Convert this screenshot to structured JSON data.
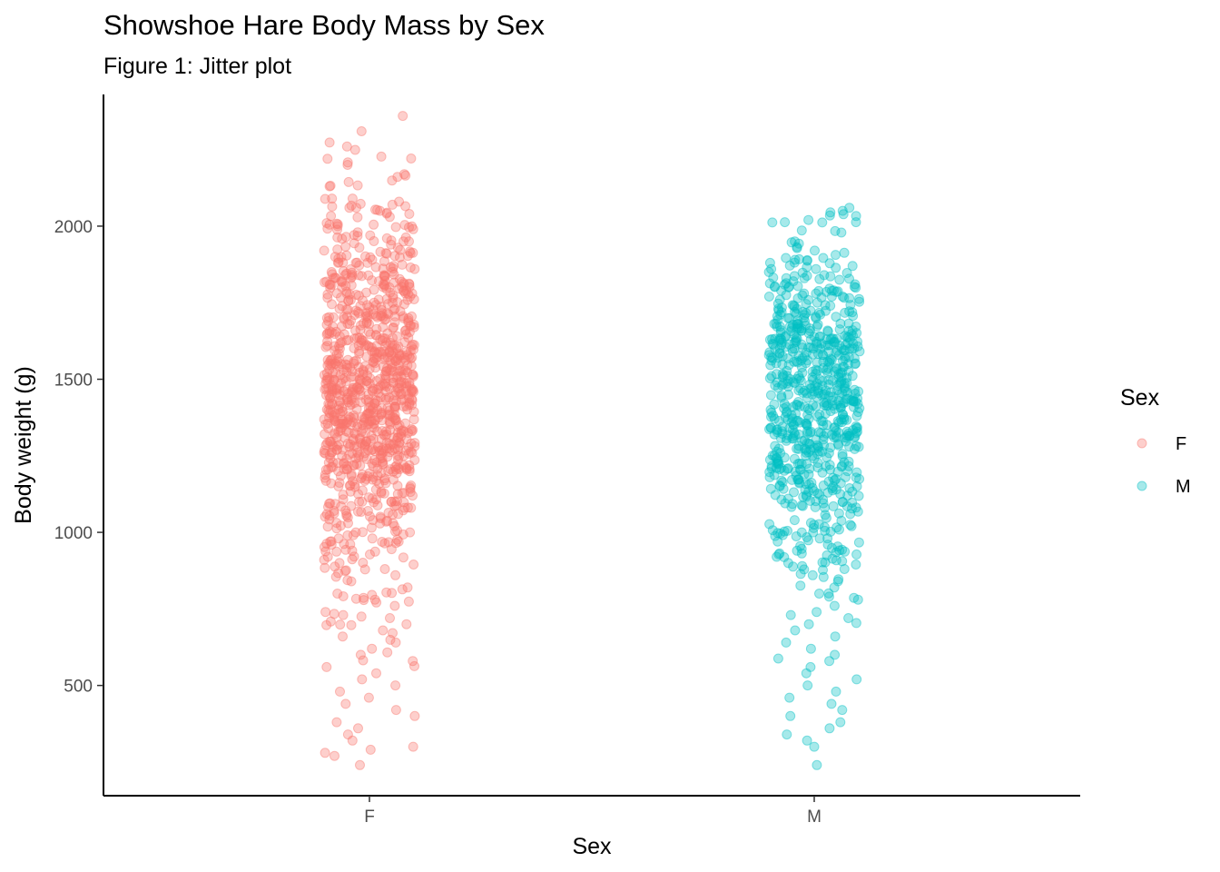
{
  "chart_data": {
    "type": "scatter",
    "subtype": "jitter",
    "title": "Showshoe Hare Body Mass by Sex",
    "subtitle": "Figure 1: Jitter plot",
    "xlabel": "Sex",
    "ylabel": "Body weight (g)",
    "categories": [
      "F",
      "M"
    ],
    "ylim": [
      140,
      2430
    ],
    "yticks": [
      500,
      1000,
      1500,
      2000
    ],
    "grid": false,
    "legend": {
      "title": "Sex",
      "position": "right",
      "entries": [
        "F",
        "M"
      ]
    },
    "point_alpha": 0.35,
    "series": [
      {
        "name": "F",
        "color": "#F8766D",
        "y_range_observed": [
          240,
          2360
        ],
        "values": [
          2360,
          2310,
          2260,
          2220,
          2200,
          2170,
          2130,
          2090,
          2090,
          2080,
          2070,
          2060,
          2060,
          2050,
          2040,
          2030,
          2010,
          2000,
          1990,
          1980,
          1970,
          1960,
          1950,
          1950,
          1940,
          1930,
          1920,
          1910,
          1900,
          1890,
          1880,
          1870,
          1860,
          1850,
          1840,
          1830,
          1820,
          1810,
          1800,
          1790,
          1780,
          1770,
          1760,
          1750,
          1740,
          1730,
          1720,
          1710,
          1700,
          1690,
          1680,
          1670,
          1660,
          1650,
          1640,
          1630,
          1620,
          1610,
          1600,
          1590,
          1580,
          1570,
          1560,
          1550,
          1540,
          1530,
          1520,
          1510,
          1500,
          1490,
          1480,
          1470,
          1460,
          1450,
          1440,
          1430,
          1420,
          1410,
          1400,
          1390,
          1380,
          1370,
          1360,
          1350,
          1340,
          1330,
          1320,
          1310,
          1300,
          1290,
          1280,
          1270,
          1260,
          1250,
          1240,
          1230,
          1220,
          1210,
          1200,
          1180,
          1160,
          1140,
          1120,
          1100,
          1080,
          1060,
          1040,
          1020,
          1000,
          980,
          960,
          940,
          920,
          900,
          880,
          860,
          840,
          820,
          800,
          780,
          760,
          740,
          720,
          700,
          680,
          660,
          640,
          620,
          600,
          580,
          560,
          540,
          520,
          500,
          480,
          460,
          440,
          420,
          400,
          380,
          360,
          340,
          320,
          300,
          290,
          280,
          270,
          240
        ]
      },
      {
        "name": "M",
        "color": "#00BFC4",
        "y_range_observed": [
          240,
          2060
        ],
        "values": [
          2060,
          2050,
          1950,
          1920,
          1890,
          1880,
          1870,
          1860,
          1850,
          1840,
          1830,
          1820,
          1810,
          1800,
          1790,
          1780,
          1770,
          1760,
          1750,
          1740,
          1730,
          1720,
          1710,
          1700,
          1690,
          1680,
          1670,
          1660,
          1650,
          1640,
          1630,
          1620,
          1610,
          1600,
          1590,
          1580,
          1570,
          1560,
          1550,
          1540,
          1530,
          1520,
          1510,
          1500,
          1490,
          1480,
          1470,
          1460,
          1450,
          1440,
          1430,
          1420,
          1410,
          1400,
          1390,
          1380,
          1370,
          1360,
          1350,
          1340,
          1330,
          1320,
          1310,
          1300,
          1290,
          1280,
          1270,
          1260,
          1250,
          1240,
          1230,
          1220,
          1210,
          1200,
          1180,
          1160,
          1140,
          1120,
          1100,
          1080,
          1060,
          1040,
          1020,
          1000,
          980,
          960,
          940,
          920,
          900,
          880,
          860,
          840,
          820,
          800,
          780,
          760,
          740,
          720,
          700,
          680,
          660,
          640,
          620,
          600,
          580,
          560,
          540,
          520,
          500,
          480,
          460,
          440,
          420,
          400,
          380,
          360,
          340,
          320,
          300,
          240
        ]
      }
    ]
  }
}
